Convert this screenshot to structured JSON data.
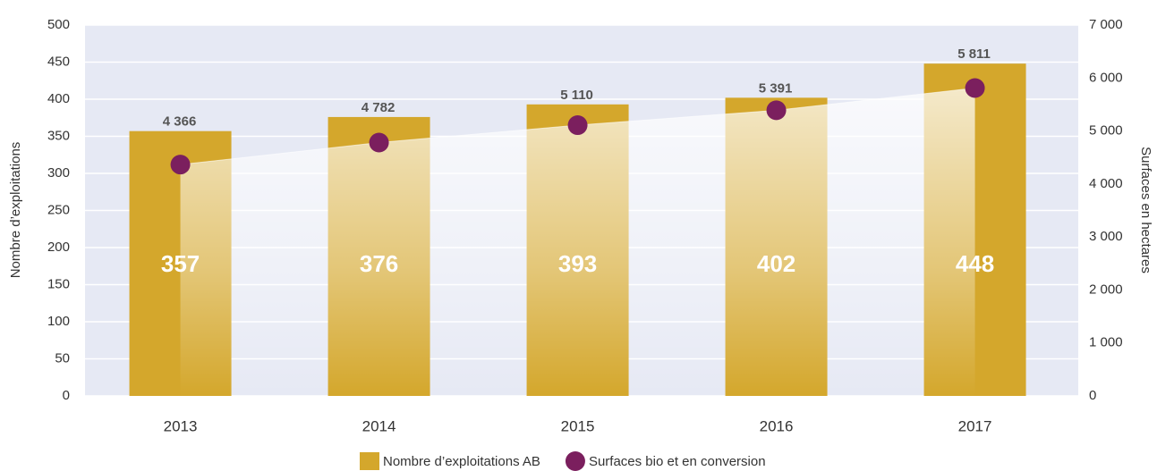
{
  "chart_data": {
    "type": "bar",
    "categories": [
      "2013",
      "2014",
      "2015",
      "2016",
      "2017"
    ],
    "series": [
      {
        "name": "Nombre d’exploitations AB",
        "type": "bar",
        "color": "#d4a72c",
        "values": [
          357,
          376,
          393,
          402,
          448
        ]
      },
      {
        "name": "Surfaces bio et en conversion",
        "type": "scatter",
        "axis": "y2",
        "color": "#7b1f5e",
        "values": [
          4366,
          4782,
          5110,
          5391,
          5811
        ],
        "value_labels": [
          "4 366",
          "4 782",
          "5 110",
          "5 391",
          "5 811"
        ]
      }
    ],
    "ylabel": "Nombre d’exploitations",
    "y2label": "Surfaces en hectares",
    "ylim": [
      0,
      500
    ],
    "yticks": [
      0,
      50,
      100,
      150,
      200,
      250,
      300,
      350,
      400,
      450,
      500
    ],
    "y2lim": [
      0,
      7000
    ],
    "y2ticks": [
      0,
      {
        "value": 1000,
        "label": "1 000"
      },
      {
        "value": 2000,
        "label": "2 000"
      },
      {
        "value": 3000,
        "label": "3 000"
      },
      {
        "value": 4000,
        "label": "4 000"
      },
      {
        "value": 5000,
        "label": "5 000"
      },
      {
        "value": 6000,
        "label": "6 000"
      },
      {
        "value": 7000,
        "label": "7 000"
      }
    ],
    "grid": true,
    "legend": "bottom"
  }
}
